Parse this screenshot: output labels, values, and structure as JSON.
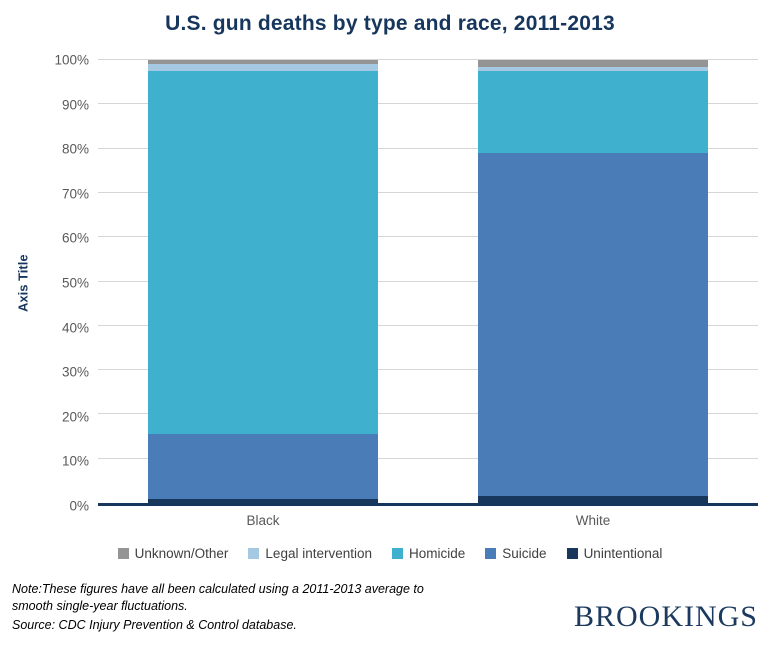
{
  "chart_data": {
    "type": "bar",
    "stacked": true,
    "title": "U.S. gun deaths by type and race, 2011-2013",
    "y_axis_title": "Axis Title",
    "categories": [
      "Black",
      "White"
    ],
    "series": [
      {
        "name": "Unknown/Other",
        "color": "#949494",
        "values": [
          1.0,
          1.5
        ]
      },
      {
        "name": "Legal intervention",
        "color": "#a5c9e3",
        "values": [
          1.5,
          1.0
        ]
      },
      {
        "name": "Homicide",
        "color": "#3fb0cd",
        "values": [
          82.0,
          18.5
        ]
      },
      {
        "name": "Suicide",
        "color": "#4a7db8",
        "values": [
          14.5,
          77.5
        ]
      },
      {
        "name": "Unintentional",
        "color": "#17375c",
        "values": [
          1.0,
          1.5
        ]
      }
    ],
    "ylim": [
      0,
      100
    ],
    "y_tick_step": 10,
    "y_ticks": [
      "0%",
      "10%",
      "20%",
      "30%",
      "40%",
      "50%",
      "60%",
      "70%",
      "80%",
      "90%",
      "100%"
    ],
    "grid": true,
    "legend_position": "bottom",
    "colors": {
      "title": "#17365d",
      "axis_title": "#17365d",
      "tick_label": "#595959",
      "gridline": "#d6d6d6",
      "baseline": "#17365d"
    }
  },
  "footer": {
    "note": "Note:These figures have all been calculated using a 2011-2013 average to smooth single-year fluctuations.",
    "source": "Source: CDC Injury Prevention & Control database.",
    "logo": "BROOKINGS"
  }
}
